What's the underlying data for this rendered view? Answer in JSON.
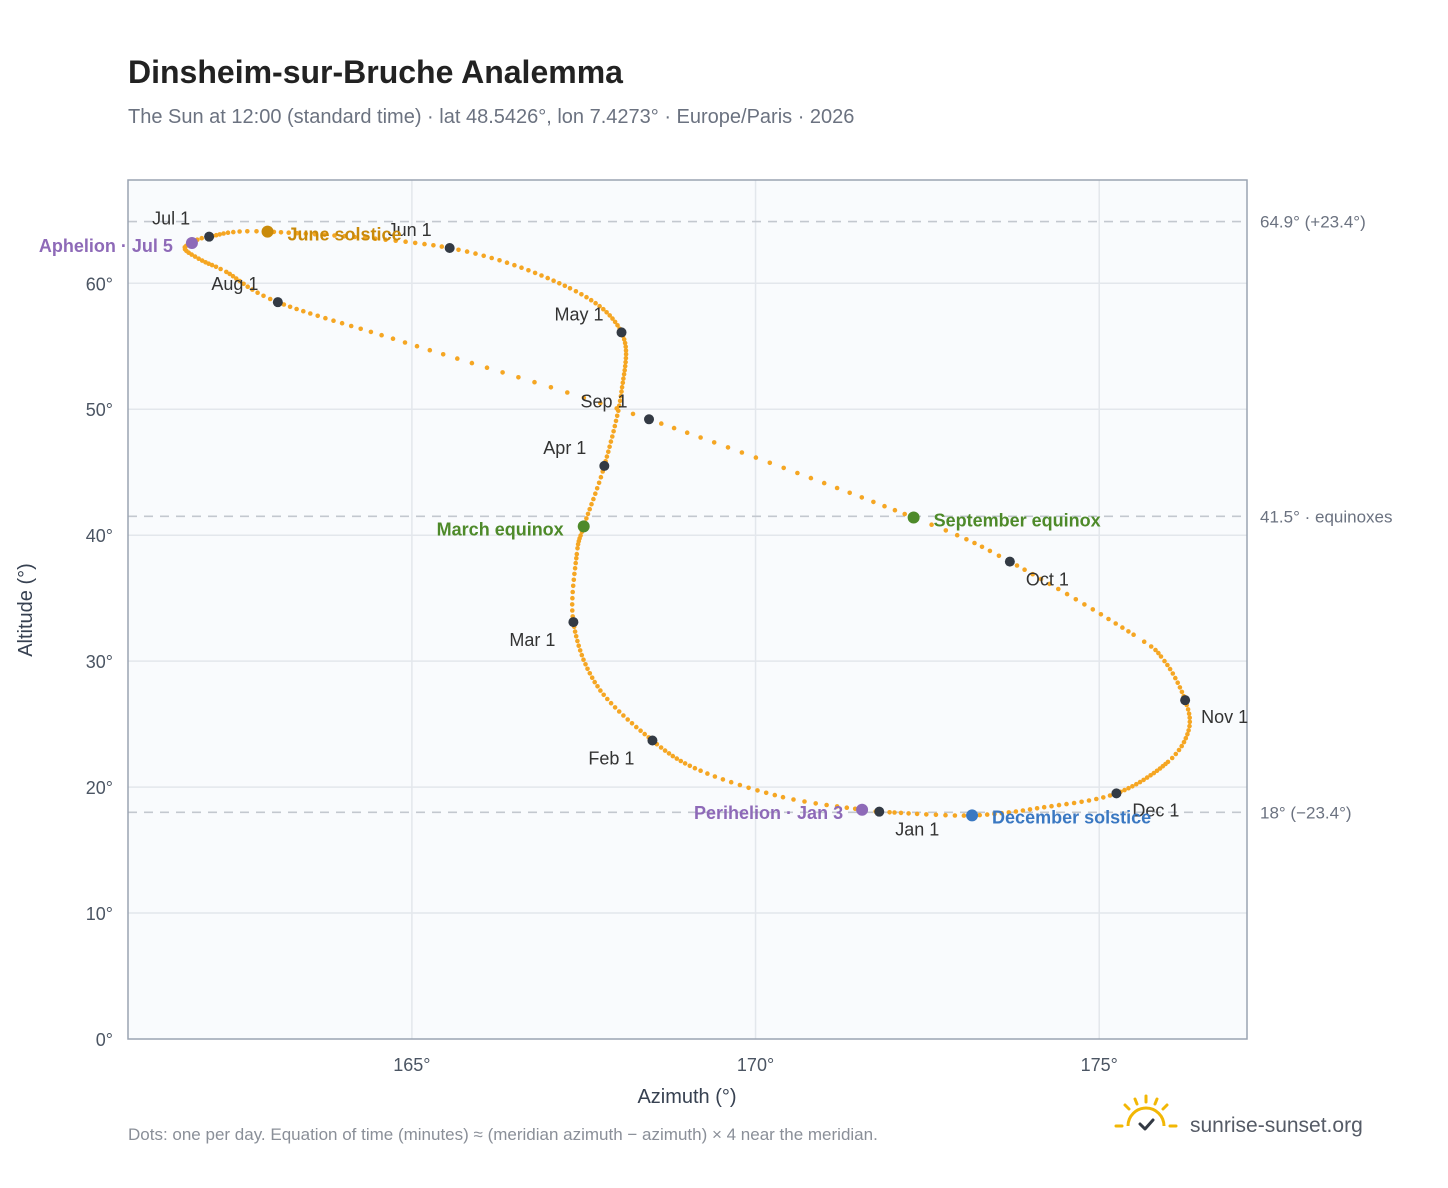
{
  "chart_data": {
    "type": "scatter",
    "title": "Dinsheim-sur-Bruche Analemma",
    "subtitle": "The Sun at 12:00 (standard time) · lat 48.5426°, lon 7.4273° · Europe/Paris · 2026",
    "xlabel": "Azimuth (°)",
    "ylabel": "Altitude (°)",
    "xlim": [
      160.87,
      177.15
    ],
    "ylim": [
      0,
      68.2
    ],
    "x_ticks": [
      {
        "value": 165,
        "label": "165°"
      },
      {
        "value": 170,
        "label": "170°"
      },
      {
        "value": 175,
        "label": "175°"
      }
    ],
    "y_ticks": [
      {
        "value": 0,
        "label": "0°"
      },
      {
        "value": 10,
        "label": "10°"
      },
      {
        "value": 20,
        "label": "20°"
      },
      {
        "value": 30,
        "label": "30°"
      },
      {
        "value": 40,
        "label": "40°"
      },
      {
        "value": 50,
        "label": "50°"
      },
      {
        "value": 60,
        "label": "60°"
      }
    ],
    "grid": true,
    "reference_lines": [
      {
        "value": 64.9,
        "label": "64.9° (+23.4°)"
      },
      {
        "value": 41.5,
        "label": "41.5° · equinoxes"
      },
      {
        "value": 18.0,
        "label": "18° (−23.4°)"
      }
    ],
    "path_description_points": "one dot per day",
    "series": [
      {
        "name": "daily",
        "color": "#f5a623",
        "control_points": [
          {
            "doy": 1,
            "az": 171.8,
            "alt": 18.05
          },
          {
            "doy": 3,
            "az": 171.55,
            "alt": 18.2
          },
          {
            "doy": 11,
            "az": 170.4,
            "alt": 19.2
          },
          {
            "doy": 21,
            "az": 169.2,
            "alt": 21.3
          },
          {
            "doy": 32,
            "az": 168.5,
            "alt": 23.7
          },
          {
            "doy": 46,
            "az": 167.7,
            "alt": 28.0
          },
          {
            "doy": 60,
            "az": 167.35,
            "alt": 33.1
          },
          {
            "doy": 72,
            "az": 167.4,
            "alt": 38.5
          },
          {
            "doy": 79,
            "az": 167.5,
            "alt": 40.7
          },
          {
            "doy": 91,
            "az": 167.8,
            "alt": 45.5
          },
          {
            "doy": 106,
            "az": 168.05,
            "alt": 51.4
          },
          {
            "doy": 121,
            "az": 168.05,
            "alt": 56.1
          },
          {
            "doy": 135,
            "az": 167.3,
            "alt": 59.6
          },
          {
            "doy": 152,
            "az": 165.55,
            "alt": 62.8
          },
          {
            "doy": 172,
            "az": 162.9,
            "alt": 64.1
          },
          {
            "doy": 182,
            "az": 162.05,
            "alt": 63.7
          },
          {
            "doy": 186,
            "az": 161.8,
            "alt": 63.2
          },
          {
            "doy": 190,
            "az": 161.7,
            "alt": 62.7
          },
          {
            "doy": 196,
            "az": 161.95,
            "alt": 61.8
          },
          {
            "doy": 202,
            "az": 162.3,
            "alt": 60.9
          },
          {
            "doy": 213,
            "az": 163.05,
            "alt": 58.5
          },
          {
            "doy": 228,
            "az": 164.9,
            "alt": 55.3
          },
          {
            "doy": 244,
            "az": 168.45,
            "alt": 49.2
          },
          {
            "doy": 265,
            "az": 172.3,
            "alt": 41.4
          },
          {
            "doy": 274,
            "az": 173.7,
            "alt": 37.9
          },
          {
            "doy": 290,
            "az": 175.5,
            "alt": 32.1
          },
          {
            "doy": 296,
            "az": 175.95,
            "alt": 30.0
          },
          {
            "doy": 305,
            "az": 176.25,
            "alt": 26.9
          },
          {
            "doy": 312,
            "az": 176.3,
            "alt": 24.5
          },
          {
            "doy": 320,
            "az": 176.0,
            "alt": 22.0
          },
          {
            "doy": 335,
            "az": 175.25,
            "alt": 19.5
          },
          {
            "doy": 345,
            "az": 174.2,
            "alt": 18.4
          },
          {
            "doy": 355,
            "az": 173.15,
            "alt": 17.75
          },
          {
            "doy": 365,
            "az": 171.95,
            "alt": 18.0
          }
        ]
      }
    ],
    "month_markers": [
      {
        "label": "Jan 1",
        "az": 171.8,
        "alt": 18.05,
        "anchor": "start",
        "dx": 16,
        "dy": 24
      },
      {
        "label": "Feb 1",
        "az": 168.5,
        "alt": 23.7,
        "anchor": "end",
        "dx": -18,
        "dy": 24
      },
      {
        "label": "Mar 1",
        "az": 167.35,
        "alt": 33.1,
        "anchor": "end",
        "dx": -18,
        "dy": 24
      },
      {
        "label": "Apr 1",
        "az": 167.8,
        "alt": 45.5,
        "anchor": "end",
        "dx": -18,
        "dy": -12
      },
      {
        "label": "May 1",
        "az": 168.05,
        "alt": 56.1,
        "anchor": "end",
        "dx": -18,
        "dy": -12
      },
      {
        "label": "Jun 1",
        "az": 165.55,
        "alt": 62.8,
        "anchor": "middle",
        "dx": -40,
        "dy": -12
      },
      {
        "label": "Jul 1",
        "az": 162.05,
        "alt": 63.7,
        "anchor": "middle",
        "dx": -38,
        "dy": -12
      },
      {
        "label": "Aug 1",
        "az": 163.05,
        "alt": 58.5,
        "anchor": "middle",
        "dx": -43,
        "dy": -12
      },
      {
        "label": "Sep 1",
        "az": 168.45,
        "alt": 49.2,
        "anchor": "middle",
        "dx": -45,
        "dy": -12
      },
      {
        "label": "Oct 1",
        "az": 173.7,
        "alt": 37.9,
        "anchor": "start",
        "dx": 16,
        "dy": 24
      },
      {
        "label": "Nov 1",
        "az": 176.25,
        "alt": 26.9,
        "anchor": "start",
        "dx": 16,
        "dy": 23
      },
      {
        "label": "Dec 1",
        "az": 175.25,
        "alt": 19.5,
        "anchor": "start",
        "dx": 16,
        "dy": 23
      }
    ],
    "events": [
      {
        "label": "June solstice",
        "az": 162.9,
        "alt": 64.1,
        "color": "#c98a0a",
        "anchor": "start",
        "dx": 20,
        "dy": 9
      },
      {
        "label": "Aphelion · Jul 5",
        "az": 161.8,
        "alt": 63.2,
        "color": "#8e6ab8",
        "anchor": "end",
        "dx": -19,
        "dy": 9
      },
      {
        "label": "March equinox",
        "az": 167.5,
        "alt": 40.7,
        "color": "#4e8a2a",
        "anchor": "end",
        "dx": -20,
        "dy": 9
      },
      {
        "label": "September equinox",
        "az": 172.3,
        "alt": 41.4,
        "color": "#4e8a2a",
        "anchor": "start",
        "dx": 20,
        "dy": 9
      },
      {
        "label": "Perihelion · Jan 3",
        "az": 171.55,
        "alt": 18.2,
        "color": "#8e6ab8",
        "anchor": "end",
        "dx": -19,
        "dy": 9
      },
      {
        "label": "December solstice",
        "az": 173.15,
        "alt": 17.75,
        "color": "#3a78c2",
        "anchor": "start",
        "dx": 20,
        "dy": 8
      }
    ]
  },
  "footnote": "Dots: one per day. Equation of time (minutes) ≈ (meridian azimuth − azimuth) × 4 near the meridian.",
  "brand": {
    "name": "sunrise-sunset.org",
    "icon": "sun-check-icon",
    "color": "#f2b705"
  }
}
